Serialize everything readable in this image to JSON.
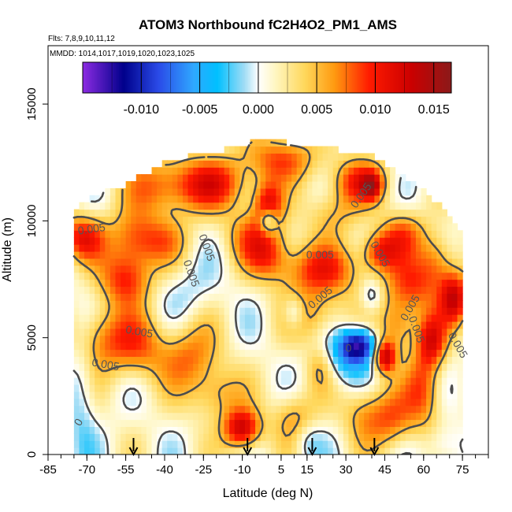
{
  "chart_data": {
    "type": "heatmap",
    "title": "ATOM3 Northbound fC2H4O2_PM1_AMS",
    "flights_note": "Flts: 7,8,9,10,11,12",
    "dates_note": "MMDD: 1014,1017,1019,1020,1023,1025",
    "xlabel": "Latitude (deg N)",
    "ylabel": "Altitude (m)",
    "xlim": [
      -85,
      85
    ],
    "ylim": [
      0,
      17500
    ],
    "x_ticks": [
      -85,
      -70,
      -55,
      -40,
      -25,
      -10,
      5,
      15,
      30,
      45,
      60,
      75
    ],
    "x_tick_labels": [
      "-85",
      "-70",
      "-55",
      "-40",
      "-25",
      "-10",
      "5",
      "15",
      "30",
      "45",
      "60",
      "75"
    ],
    "y_ticks": [
      0,
      5000,
      10000,
      15000
    ],
    "y_tick_labels": [
      "0",
      "5000",
      "10000",
      "15000"
    ],
    "colorbar": {
      "range": [
        -0.015,
        0.0165
      ],
      "ticks": [
        -0.01,
        -0.005,
        0.0,
        0.005,
        0.01,
        0.015
      ],
      "tick_labels": [
        "-0.010",
        "-0.005",
        "0.000",
        "0.005",
        "0.010",
        "0.015"
      ],
      "stops": [
        {
          "value": -0.015,
          "color": "#8c2be2"
        },
        {
          "value": -0.0115,
          "color": "#00008b"
        },
        {
          "value": -0.0085,
          "color": "#2a4be8"
        },
        {
          "value": -0.0055,
          "color": "#2fa8ff"
        },
        {
          "value": -0.0035,
          "color": "#00c0ff"
        },
        {
          "value": -0.0012,
          "color": "#9fdcf5"
        },
        {
          "value": 0.0,
          "color": "#ffffff"
        },
        {
          "value": 0.0015,
          "color": "#fff6c0"
        },
        {
          "value": 0.004,
          "color": "#ffd75a"
        },
        {
          "value": 0.0065,
          "color": "#ff9a10"
        },
        {
          "value": 0.0095,
          "color": "#ff1a00"
        },
        {
          "value": 0.013,
          "color": "#cc0000"
        },
        {
          "value": 0.0165,
          "color": "#8b1a1a"
        }
      ]
    },
    "contour_labels": [
      {
        "text": "0.005",
        "lat": -68,
        "alt": 9500,
        "angle": -8
      },
      {
        "text": "0.005",
        "lat": -63,
        "alt": 3700,
        "angle": 10
      },
      {
        "text": "0.005",
        "lat": -50,
        "alt": 5100,
        "angle": 10
      },
      {
        "text": "0.005",
        "lat": -25,
        "alt": 8800,
        "angle": 70
      },
      {
        "text": "0.005",
        "lat": -31,
        "alt": 7700,
        "angle": 70
      },
      {
        "text": "0.005",
        "lat": 20,
        "alt": 8400,
        "angle": 0
      },
      {
        "text": "0.005",
        "lat": 21,
        "alt": 6600,
        "angle": -40
      },
      {
        "text": "0.005",
        "lat": 37,
        "alt": 11000,
        "angle": -55
      },
      {
        "text": "0.005",
        "lat": 42,
        "alt": 8500,
        "angle": 60
      },
      {
        "text": "0.005",
        "lat": 56,
        "alt": 6200,
        "angle": -60
      },
      {
        "text": "0.005",
        "lat": 72,
        "alt": 4600,
        "angle": 60
      },
      {
        "text": "0.005",
        "lat": 56,
        "alt": 5300,
        "angle": 70
      },
      {
        "text": "0",
        "lat": 31,
        "alt": 4400,
        "angle": 0
      },
      {
        "text": "0",
        "lat": -72,
        "alt": 1300,
        "angle": -60
      }
    ],
    "arrows_lat": [
      -52,
      -8,
      17,
      41
    ],
    "field": {
      "base": 0.0011,
      "lat_range": [
        -75,
        75
      ],
      "alt_top_by_lat": [
        {
          "lat": -75,
          "alt": 10600
        },
        {
          "lat": -70,
          "alt": 10800
        },
        {
          "lat": -65,
          "alt": 11200
        },
        {
          "lat": -55,
          "alt": 11500
        },
        {
          "lat": -45,
          "alt": 12200
        },
        {
          "lat": -35,
          "alt": 12700
        },
        {
          "lat": -20,
          "alt": 12900
        },
        {
          "lat": -10,
          "alt": 13300
        },
        {
          "lat": 0,
          "alt": 13500
        },
        {
          "lat": 10,
          "alt": 13300
        },
        {
          "lat": 20,
          "alt": 13200
        },
        {
          "lat": 30,
          "alt": 13000
        },
        {
          "lat": 40,
          "alt": 12800
        },
        {
          "lat": 50,
          "alt": 12000
        },
        {
          "lat": 60,
          "alt": 11400
        },
        {
          "lat": 70,
          "alt": 10200
        },
        {
          "lat": 75,
          "alt": 9300
        }
      ],
      "features": [
        {
          "lat": -72,
          "alt": 9300,
          "slat": 6,
          "salt": 700,
          "amp": 0.009
        },
        {
          "lat": -52,
          "alt": 9200,
          "slat": 7,
          "salt": 900,
          "amp": 0.007
        },
        {
          "lat": -40,
          "alt": 11500,
          "slat": 10,
          "salt": 900,
          "amp": 0.007
        },
        {
          "lat": -20,
          "alt": 11600,
          "slat": 10,
          "salt": 800,
          "amp": 0.008
        },
        {
          "lat": 5,
          "alt": 12700,
          "slat": 10,
          "salt": 700,
          "amp": 0.007
        },
        {
          "lat": 35,
          "alt": 11700,
          "slat": 8,
          "salt": 700,
          "amp": 0.008
        },
        {
          "lat": 40,
          "alt": 11500,
          "slat": 2.5,
          "salt": 400,
          "amp": 0.007
        },
        {
          "lat": -55,
          "alt": 7500,
          "slat": 7,
          "salt": 800,
          "amp": 0.008
        },
        {
          "lat": -65,
          "alt": 5000,
          "slat": 8,
          "salt": 1000,
          "amp": 0.006
        },
        {
          "lat": -50,
          "alt": 4600,
          "slat": 8,
          "salt": 1000,
          "amp": 0.006
        },
        {
          "lat": -30,
          "alt": 4200,
          "slat": 8,
          "salt": 1000,
          "amp": 0.006
        },
        {
          "lat": -40,
          "alt": 9200,
          "slat": 7,
          "salt": 700,
          "amp": 0.004
        },
        {
          "lat": -5,
          "alt": 9400,
          "slat": 8,
          "salt": 800,
          "amp": 0.006
        },
        {
          "lat": 0,
          "alt": 10700,
          "slat": 4,
          "salt": 700,
          "amp": 0.009
        },
        {
          "lat": 0,
          "alt": 8500,
          "slat": 6,
          "salt": 700,
          "amp": 0.005
        },
        {
          "lat": 20,
          "alt": 7900,
          "slat": 12,
          "salt": 800,
          "amp": 0.008
        },
        {
          "lat": 18,
          "alt": 6000,
          "slat": 8,
          "salt": 800,
          "amp": 0.005
        },
        {
          "lat": 25,
          "alt": 10300,
          "slat": 7,
          "salt": 700,
          "amp": 0.004
        },
        {
          "lat": 43,
          "alt": 8700,
          "slat": 5,
          "salt": 600,
          "amp": 0.008
        },
        {
          "lat": 52,
          "alt": 9500,
          "slat": 6,
          "salt": 700,
          "amp": 0.006
        },
        {
          "lat": 55,
          "alt": 7200,
          "slat": 7,
          "salt": 900,
          "amp": 0.007
        },
        {
          "lat": 65,
          "alt": 8300,
          "slat": 5,
          "salt": 900,
          "amp": 0.006
        },
        {
          "lat": 72,
          "alt": 6700,
          "slat": 4,
          "salt": 800,
          "amp": 0.011
        },
        {
          "lat": 63,
          "alt": 4900,
          "slat": 4,
          "salt": 800,
          "amp": 0.009
        },
        {
          "lat": 45,
          "alt": 4200,
          "slat": 3,
          "salt": 500,
          "amp": 0.012
        },
        {
          "lat": 50,
          "alt": 5500,
          "slat": 5,
          "salt": 800,
          "amp": 0.006
        },
        {
          "lat": 60,
          "alt": 2800,
          "slat": 5,
          "salt": 1200,
          "amp": 0.007
        },
        {
          "lat": 48,
          "alt": 1500,
          "slat": 6,
          "salt": 900,
          "amp": 0.006
        },
        {
          "lat": 37,
          "alt": 1800,
          "slat": 6,
          "salt": 900,
          "amp": 0.005
        },
        {
          "lat": -10,
          "alt": 1100,
          "slat": 5,
          "salt": 600,
          "amp": 0.012
        },
        {
          "lat": 10,
          "alt": 1600,
          "slat": 6,
          "salt": 800,
          "amp": 0.005
        },
        {
          "lat": -20,
          "alt": 2600,
          "slat": 7,
          "salt": 800,
          "amp": 0.005
        },
        {
          "lat": 20,
          "alt": 3800,
          "slat": 4,
          "salt": 700,
          "amp": 0.004
        },
        {
          "lat": 35,
          "alt": 4700,
          "slat": 5,
          "salt": 500,
          "amp": -0.012
        },
        {
          "lat": 30,
          "alt": 4100,
          "slat": 7,
          "salt": 800,
          "amp": -0.005
        },
        {
          "lat": 40,
          "alt": 6800,
          "slat": 3,
          "salt": 500,
          "amp": -0.004
        },
        {
          "lat": 0,
          "alt": 10000,
          "slat": 2.5,
          "salt": 400,
          "amp": -0.008
        },
        {
          "lat": -72,
          "alt": 2500,
          "slat": 4,
          "salt": 2500,
          "amp": -0.003
        },
        {
          "lat": 68,
          "alt": 400,
          "slat": 5,
          "salt": 600,
          "amp": -0.003
        },
        {
          "lat": 15,
          "alt": 600,
          "slat": 4,
          "salt": 600,
          "amp": -0.003
        },
        {
          "lat": 10,
          "alt": 6100,
          "slat": 3,
          "salt": 500,
          "amp": -0.005
        },
        {
          "lat": -30,
          "alt": 7000,
          "slat": 8,
          "salt": 800,
          "amp": -0.002
        }
      ]
    }
  }
}
